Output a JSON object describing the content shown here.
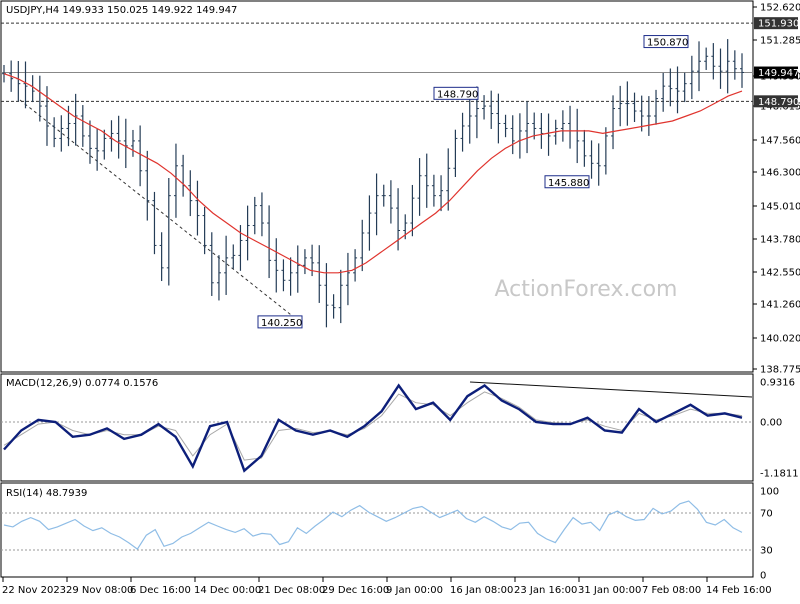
{
  "chart_data": [
    {
      "type": "line",
      "subtype": "candlestick-bars",
      "header_text": "USDJPY,H4  149.933 150.025 149.922 149.947",
      "watermark": "ActionForex.com",
      "ylim": [
        139.0,
        152.62
      ],
      "y_ticks": [
        "152.620",
        "151.285",
        "149.950",
        "148.615",
        "147.560",
        "146.300",
        "145.010",
        "143.780",
        "142.550",
        "141.260",
        "140.020",
        "138.775"
      ],
      "horizontal_levels": [
        {
          "label": "151.930",
          "value": 151.93,
          "style": "dashed",
          "highlight": false
        },
        {
          "label": "149.947",
          "value": 149.947,
          "style": "solid",
          "highlight": true
        },
        {
          "label": "148.790",
          "value": 148.79,
          "style": "dashed",
          "highlight": false
        }
      ],
      "annotations": [
        {
          "label": "150.870",
          "value": 150.87
        },
        {
          "label": "148.790",
          "value": 148.79
        },
        {
          "label": "145.880",
          "value": 145.88
        },
        {
          "label": "140.250",
          "value": 140.25
        }
      ],
      "x_labels": [
        "22 Nov 2023",
        "29 Nov 08:00",
        "6 Dec 16:00",
        "14 Dec 00:00",
        "21 Dec 08:00",
        "29 Dec 16:00",
        "9 Jan 00:00",
        "16 Jan 08:00",
        "23 Jan 16:00",
        "31 Jan 00:00",
        "7 Feb 08:00",
        "14 Feb 16:00"
      ],
      "series": [
        {
          "name": "",
          "role": "price-closes",
          "color": "#243c56",
          "values": [
            149.9,
            149.7,
            149.5,
            149.4,
            149.2,
            148.6,
            147.8,
            147.3,
            147.7,
            147.9,
            148.2,
            147.4,
            146.9,
            146.8,
            147.3,
            147.5,
            147.2,
            147.0,
            147.2,
            146.0,
            144.8,
            143.0,
            142.1,
            145.0,
            146.2,
            145.4,
            144.8,
            144.2,
            143.0,
            141.5,
            141.9,
            142.5,
            142.6,
            143.2,
            143.8,
            144.6,
            143.9,
            142.4,
            142.0,
            141.6,
            141.9,
            142.2,
            142.5,
            142.3,
            141.4,
            140.6,
            140.5,
            141.4,
            141.9,
            142.5,
            143.5,
            144.3,
            145.0,
            145.0,
            144.5,
            143.6,
            143.9,
            144.9,
            145.8,
            145.4,
            145.0,
            145.2,
            146.1,
            147.3,
            147.8,
            148.2,
            148.5,
            148.6,
            148.3,
            147.9,
            147.7,
            147.2,
            147.6,
            147.9,
            147.7,
            147.5,
            147.4,
            147.7,
            147.9,
            147.6,
            147.2,
            146.6,
            146.3,
            146.2,
            147.4,
            148.5,
            148.7,
            148.7,
            148.4,
            148.2,
            148.2,
            148.9,
            149.4,
            149.3,
            149.2,
            149.5,
            150.0,
            150.4,
            150.6,
            150.2,
            150.0,
            150.4,
            150.1,
            149.95
          ]
        },
        {
          "name": "",
          "role": "moving-average",
          "color": "#e0342e",
          "values": [
            149.9,
            149.7,
            149.4,
            149.0,
            148.6,
            148.2,
            147.9,
            147.6,
            147.2,
            146.9,
            146.6,
            146.3,
            145.9,
            145.4,
            144.8,
            144.3,
            143.9,
            143.5,
            143.2,
            142.9,
            142.6,
            142.3,
            142.0,
            141.9,
            141.9,
            142.0,
            142.3,
            142.7,
            143.1,
            143.5,
            143.9,
            144.3,
            144.8,
            145.4,
            146.0,
            146.5,
            146.9,
            147.2,
            147.4,
            147.5,
            147.6,
            147.6,
            147.6,
            147.5,
            147.6,
            147.7,
            147.8,
            147.9,
            148.0,
            148.2,
            148.4,
            148.7,
            149.0,
            149.2
          ]
        }
      ]
    },
    {
      "type": "line",
      "header_text": "MACD(12,26,9) 0.0774 0.1576",
      "ylim": [
        -1.1811,
        0.9316
      ],
      "y_ticks": [
        "0.9316",
        "0.00",
        "-1.1811"
      ],
      "series": [
        {
          "name": "",
          "role": "macd",
          "color": "#0d1f7a",
          "values": [
            -0.65,
            -0.2,
            0.05,
            0.0,
            -0.35,
            -0.3,
            -0.15,
            -0.4,
            -0.3,
            -0.05,
            -0.35,
            -1.05,
            -0.1,
            0.0,
            -1.15,
            -0.8,
            0.05,
            -0.2,
            -0.3,
            -0.2,
            -0.35,
            -0.1,
            0.25,
            0.85,
            0.3,
            0.45,
            0.05,
            0.6,
            0.85,
            0.5,
            0.3,
            0.0,
            -0.05,
            -0.05,
            0.1,
            -0.2,
            -0.25,
            0.3,
            0.0,
            0.2,
            0.4,
            0.15,
            0.2,
            0.1
          ]
        },
        {
          "name": "",
          "role": "signal",
          "color": "#a8a8a8",
          "values": [
            -0.55,
            -0.3,
            -0.05,
            0.0,
            -0.2,
            -0.3,
            -0.2,
            -0.3,
            -0.3,
            -0.1,
            -0.2,
            -0.8,
            -0.3,
            -0.05,
            -0.9,
            -0.85,
            -0.2,
            -0.15,
            -0.25,
            -0.22,
            -0.3,
            -0.15,
            0.15,
            0.65,
            0.45,
            0.4,
            0.15,
            0.45,
            0.7,
            0.55,
            0.35,
            0.05,
            -0.02,
            -0.04,
            0.05,
            -0.1,
            -0.2,
            0.2,
            0.05,
            0.15,
            0.3,
            0.2,
            0.2,
            0.15
          ]
        }
      ]
    },
    {
      "type": "line",
      "header_text": "RSI(14) 48.7939",
      "ylim": [
        0,
        100
      ],
      "y_ticks": [
        "100",
        "70",
        "30",
        "0"
      ],
      "series": [
        {
          "name": "",
          "role": "rsi",
          "color": "#8fbde6",
          "values": [
            57,
            55,
            61,
            65,
            61,
            52,
            55,
            59,
            63,
            56,
            51,
            54,
            48,
            44,
            38,
            31,
            46,
            52,
            34,
            37,
            44,
            48,
            54,
            60,
            56,
            52,
            49,
            53,
            45,
            48,
            47,
            36,
            39,
            54,
            48,
            56,
            63,
            71,
            66,
            73,
            78,
            71,
            66,
            61,
            65,
            70,
            75,
            77,
            71,
            65,
            69,
            73,
            64,
            60,
            66,
            61,
            55,
            52,
            59,
            60,
            48,
            42,
            38,
            52,
            65,
            58,
            60,
            51,
            68,
            72,
            66,
            62,
            63,
            75,
            69,
            72,
            80,
            83,
            74,
            60,
            57,
            63,
            54,
            49
          ]
        }
      ]
    }
  ]
}
